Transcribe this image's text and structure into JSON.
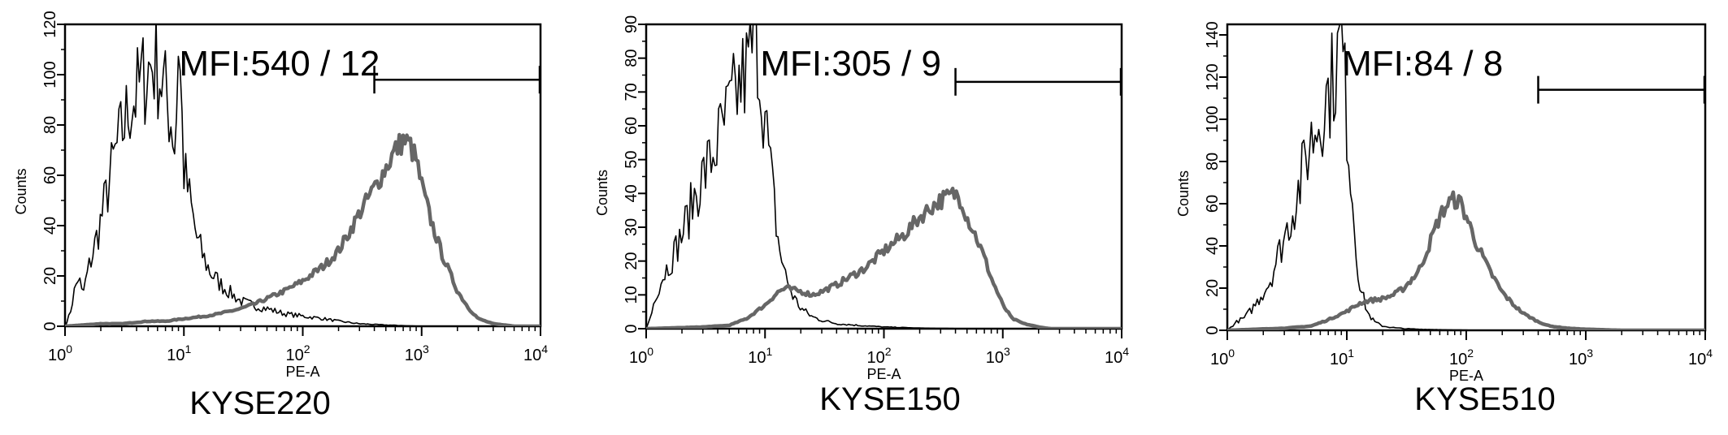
{
  "chart_data": [
    {
      "type": "line",
      "panel_label": "KYSE220",
      "annotation": "MFI:540 / 12",
      "xlabel": "PE-A",
      "ylabel": "Counts",
      "xscale": "log",
      "xlim": [
        1,
        10000
      ],
      "ylim": [
        0,
        120
      ],
      "x_ticks": [
        {
          "base": "10",
          "exp": "0"
        },
        {
          "base": "10",
          "exp": "1"
        },
        {
          "base": "10",
          "exp": "2"
        },
        {
          "base": "10",
          "exp": "3"
        },
        {
          "base": "10",
          "exp": "4"
        }
      ],
      "x_tick_values": [
        1,
        10,
        100,
        1000,
        10000
      ],
      "y_ticks": [
        "0",
        "20",
        "40",
        "60",
        "80",
        "100",
        "120"
      ],
      "y_tick_values": [
        0,
        20,
        40,
        60,
        80,
        100,
        120
      ],
      "gate": {
        "x_start": 400,
        "x_end": 10000,
        "y": 98
      },
      "series": [
        {
          "role": "isotype",
          "color": "#000000",
          "x": [
            1,
            1.1,
            1.2,
            1.3,
            1.4,
            1.6,
            1.8,
            2,
            2.3,
            2.6,
            3,
            3.5,
            4,
            4.5,
            5,
            5.5,
            6,
            6.5,
            7,
            7.5,
            8,
            8.5,
            9,
            10,
            11,
            12,
            13,
            15,
            17,
            20,
            25,
            30,
            40,
            50,
            70,
            100,
            150,
            200,
            300,
            500,
            1000
          ],
          "y": [
            0,
            5,
            14,
            20,
            12,
            24,
            33,
            42,
            55,
            67,
            77,
            88,
            92,
            98,
            102,
            105,
            103,
            98,
            92,
            86,
            80,
            70,
            118,
            62,
            52,
            42,
            34,
            26,
            21,
            17,
            13,
            10,
            8,
            7,
            5,
            4,
            3,
            2,
            1,
            0.5,
            0
          ]
        },
        {
          "role": "stained",
          "color": "#666666",
          "x": [
            1,
            2,
            3,
            5,
            7,
            10,
            15,
            20,
            30,
            40,
            50,
            70,
            100,
            150,
            200,
            250,
            300,
            400,
            500,
            600,
            700,
            800,
            900,
            1000,
            1200,
            1500,
            2000,
            2500,
            3000,
            4000,
            5000,
            6000
          ],
          "y": [
            0,
            1,
            1,
            2,
            2,
            3,
            4,
            5,
            7,
            9,
            11,
            14,
            18,
            24,
            30,
            38,
            45,
            55,
            63,
            70,
            74,
            72,
            66,
            56,
            42,
            28,
            14,
            7,
            3,
            1,
            0.5,
            0
          ]
        }
      ]
    },
    {
      "type": "line",
      "panel_label": "KYSE150",
      "annotation": "MFI:305 / 9",
      "xlabel": "PE-A",
      "ylabel": "Counts",
      "xscale": "log",
      "xlim": [
        1,
        10000
      ],
      "ylim": [
        0,
        90
      ],
      "x_ticks": [
        {
          "base": "10",
          "exp": "0"
        },
        {
          "base": "10",
          "exp": "1"
        },
        {
          "base": "10",
          "exp": "2"
        },
        {
          "base": "10",
          "exp": "3"
        },
        {
          "base": "10",
          "exp": "4"
        }
      ],
      "x_tick_values": [
        1,
        10,
        100,
        1000,
        10000
      ],
      "y_ticks": [
        "0",
        "10",
        "20",
        "30",
        "40",
        "50",
        "60",
        "70",
        "80",
        "90"
      ],
      "y_tick_values": [
        0,
        10,
        20,
        30,
        40,
        50,
        60,
        70,
        80,
        90
      ],
      "gate": {
        "x_start": 400,
        "x_end": 10000,
        "y": 73
      },
      "series": [
        {
          "role": "isotype",
          "color": "#000000",
          "x": [
            1,
            1.1,
            1.2,
            1.4,
            1.6,
            1.8,
            2,
            2.3,
            2.6,
            3,
            3.5,
            4,
            4.5,
            5,
            5.5,
            6,
            6.5,
            7,
            7.5,
            8,
            8.5,
            9,
            9.5,
            10,
            11,
            12,
            13,
            15,
            17,
            20,
            25,
            30,
            40,
            60,
            100,
            200,
            500
          ],
          "y": [
            0,
            4,
            10,
            16,
            20,
            24,
            28,
            34,
            40,
            45,
            50,
            55,
            60,
            64,
            68,
            71,
            74,
            76,
            80,
            85,
            90,
            76,
            70,
            62,
            48,
            36,
            25,
            15,
            10,
            6,
            3.5,
            2.5,
            1.5,
            1,
            0.5,
            0.2,
            0
          ]
        },
        {
          "role": "stained",
          "color": "#666666",
          "x": [
            1,
            3,
            5,
            7,
            10,
            13,
            15,
            20,
            25,
            30,
            40,
            50,
            70,
            100,
            150,
            200,
            250,
            300,
            350,
            400,
            450,
            500,
            600,
            700,
            800,
            1000,
            1200,
            1500,
            2000,
            2500
          ],
          "y": [
            0,
            0.5,
            1,
            3,
            7,
            11,
            12,
            11,
            10,
            11,
            13,
            15,
            18,
            23,
            28,
            33,
            36,
            38,
            39,
            40,
            38,
            33,
            27,
            21,
            15,
            7,
            3,
            1.5,
            0.5,
            0
          ]
        }
      ]
    },
    {
      "type": "line",
      "panel_label": "KYSE510",
      "annotation": "MFI:84 / 8",
      "xlabel": "PE-A",
      "ylabel": "Counts",
      "xscale": "log",
      "xlim": [
        1,
        10000
      ],
      "ylim": [
        0,
        145
      ],
      "x_ticks": [
        {
          "base": "10",
          "exp": "0"
        },
        {
          "base": "10",
          "exp": "1"
        },
        {
          "base": "10",
          "exp": "2"
        },
        {
          "base": "10",
          "exp": "3"
        },
        {
          "base": "10",
          "exp": "4"
        }
      ],
      "x_tick_values": [
        1,
        10,
        100,
        1000,
        10000
      ],
      "y_ticks": [
        "0",
        "20",
        "40",
        "60",
        "80",
        "100",
        "120",
        "140"
      ],
      "y_tick_values": [
        0,
        20,
        40,
        60,
        80,
        100,
        120,
        140
      ],
      "gate": {
        "x_start": 400,
        "x_end": 10000,
        "y": 114
      },
      "series": [
        {
          "role": "isotype",
          "color": "#000000",
          "x": [
            1,
            1.2,
            1.4,
            1.6,
            1.8,
            2,
            2.3,
            2.6,
            3,
            3.5,
            4,
            4.5,
            5,
            5.5,
            6,
            6.5,
            7,
            7.5,
            8,
            8.5,
            9,
            9.5,
            10,
            11,
            12,
            13,
            15,
            17,
            20,
            25,
            30,
            40,
            60,
            100,
            200
          ],
          "y": [
            0,
            4,
            6,
            10,
            14,
            18,
            24,
            34,
            44,
            56,
            68,
            80,
            90,
            96,
            102,
            108,
            112,
            118,
            124,
            130,
            140,
            120,
            100,
            68,
            38,
            20,
            8,
            4,
            2,
            1.2,
            0.8,
            0.5,
            0.3,
            0.1,
            0
          ]
        },
        {
          "role": "stained",
          "color": "#666666",
          "x": [
            1,
            3,
            5,
            7,
            10,
            13,
            15,
            20,
            25,
            30,
            40,
            50,
            60,
            70,
            80,
            90,
            100,
            120,
            150,
            200,
            250,
            300,
            400,
            500,
            700,
            1000,
            1500,
            2000
          ],
          "y": [
            0,
            1,
            2,
            5,
            9,
            13,
            14,
            15,
            17,
            20,
            28,
            42,
            54,
            60,
            62,
            60,
            54,
            42,
            30,
            18,
            12,
            8,
            4,
            2,
            1,
            0.5,
            0.2,
            0
          ]
        }
      ]
    }
  ]
}
